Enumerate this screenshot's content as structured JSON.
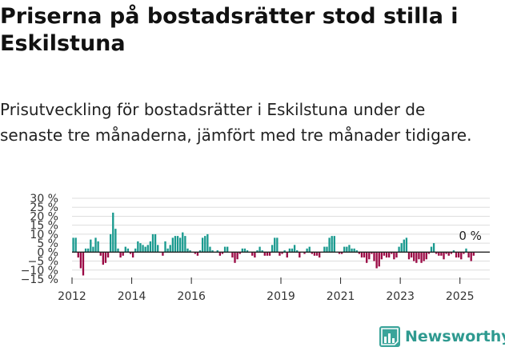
{
  "header": {
    "title": "Priserna på bostadsrätter stod stilla i Eskilstuna",
    "subtitle": "Prisutveckling för bostadsrätter i Eskilstuna under de senaste tre månaderna, jämfört med tre månader tidigare."
  },
  "brand": {
    "name": "Newsworthy",
    "icon": "newsworthy-logo-icon"
  },
  "colors": {
    "positive": "#1a9a8f",
    "negative": "#9b0a45",
    "grid": "#dddddd",
    "zero_line": "#222222"
  },
  "chart_data": {
    "type": "bar",
    "title": "",
    "xlabel": "",
    "ylabel": "",
    "ylim": [
      -15,
      30
    ],
    "yticks": [
      -15,
      -10,
      -5,
      0,
      5,
      10,
      15,
      20,
      25,
      30
    ],
    "ytick_labels": [
      "−15 %",
      "−10 %",
      "−5 %",
      "0 %",
      "5 %",
      "10 %",
      "15 %",
      "20 %",
      "25 %",
      "30 %"
    ],
    "x_range": [
      "2012-01",
      "2025-12"
    ],
    "xticks": [
      "2012",
      "2014",
      "2016",
      "2019",
      "2021",
      "2023",
      "2025"
    ],
    "annotation": {
      "label": "0 %",
      "target": "latest-value"
    },
    "start": "2012-01",
    "values": [
      8,
      8,
      -3,
      -9,
      -13,
      2,
      2,
      7,
      3,
      8,
      6,
      -2,
      -7,
      -6,
      -3,
      10,
      22,
      13,
      2,
      -3,
      -2,
      3,
      2,
      -1,
      -3,
      2,
      6,
      5,
      4,
      3,
      4,
      6,
      10,
      10,
      4,
      0,
      -2,
      6,
      2,
      4,
      8,
      9,
      9,
      8,
      11,
      9,
      2,
      1,
      0,
      -1,
      -2,
      1,
      8,
      9,
      10,
      3,
      1,
      0,
      1,
      -2,
      -1,
      3,
      3,
      0,
      -3,
      -6,
      -4,
      -1,
      2,
      2,
      1,
      0,
      -2,
      -3,
      1,
      3,
      1,
      -2,
      -2,
      -2,
      4,
      8,
      8,
      -2,
      -1,
      1,
      -3,
      2,
      2,
      4,
      1,
      -3,
      0,
      -1,
      2,
      3,
      -1,
      -2,
      -2,
      -3,
      0,
      3,
      3,
      8,
      9,
      9,
      0,
      -1,
      -1,
      3,
      3,
      4,
      2,
      2,
      1,
      -1,
      -3,
      -3,
      -6,
      -4,
      -1,
      -5,
      -9,
      -8,
      -4,
      -2,
      -3,
      -3,
      -1,
      -4,
      -3,
      3,
      5,
      7,
      8,
      -4,
      -3,
      -5,
      -6,
      -4,
      -6,
      -5,
      -4,
      -1,
      3,
      5,
      -1,
      -2,
      -2,
      -4,
      -1,
      -2,
      -1,
      1,
      -3,
      -3,
      -4,
      -1,
      2,
      -3,
      -5,
      -2,
      0
    ]
  }
}
